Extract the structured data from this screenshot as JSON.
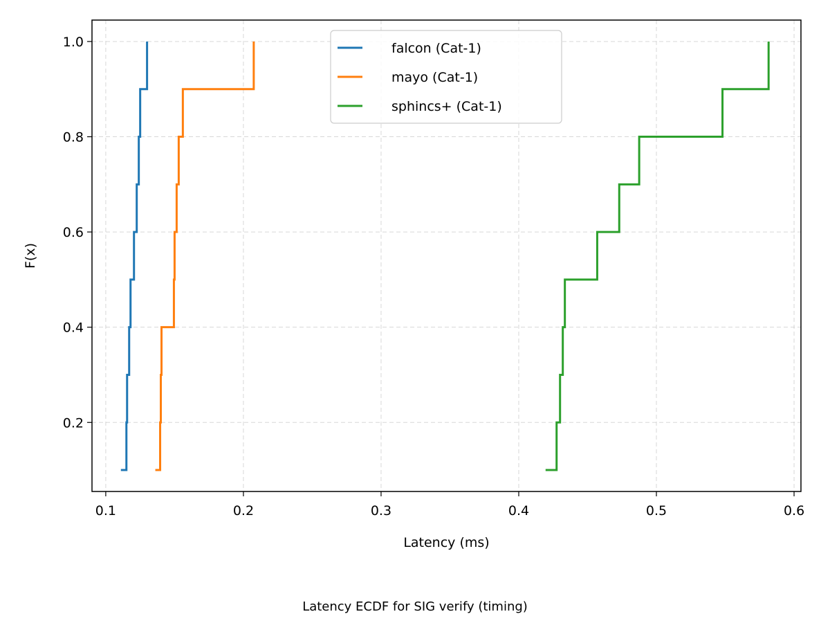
{
  "caption": "Latency ECDF for SIG verify (timing)",
  "chart_data": {
    "type": "line",
    "step": true,
    "title": "",
    "xlabel": "Latency (ms)",
    "ylabel": "F(x)",
    "xlim": [
      0.09,
      0.605
    ],
    "ylim": [
      0.055,
      1.045
    ],
    "xticks": [
      0.1,
      0.2,
      0.3,
      0.4,
      0.5,
      0.6
    ],
    "xtick_labels": [
      "0.1",
      "0.2",
      "0.3",
      "0.4",
      "0.5",
      "0.6"
    ],
    "yticks": [
      0.2,
      0.4,
      0.6,
      0.8,
      1.0
    ],
    "ytick_labels": [
      "0.2",
      "0.4",
      "0.6",
      "0.8",
      "1.0"
    ],
    "grid": true,
    "legend_position": "top-center",
    "series": [
      {
        "name": "falcon (Cat-1)",
        "color": "#1f77b4",
        "x": [
          0.1125,
          0.115,
          0.1155,
          0.117,
          0.118,
          0.1205,
          0.1225,
          0.124,
          0.125,
          0.13
        ],
        "y": [
          0.1,
          0.2,
          0.3,
          0.4,
          0.5,
          0.6,
          0.7,
          0.8,
          0.9,
          1.0
        ]
      },
      {
        "name": "mayo (Cat-1)",
        "color": "#ff7f0e",
        "x": [
          0.1375,
          0.1395,
          0.14,
          0.1405,
          0.1495,
          0.15,
          0.1515,
          0.153,
          0.156,
          0.2075
        ],
        "y": [
          0.1,
          0.2,
          0.3,
          0.4,
          0.5,
          0.6,
          0.7,
          0.8,
          0.9,
          1.0
        ]
      },
      {
        "name": "sphincs+ (Cat-1)",
        "color": "#2ca02c",
        "x": [
          0.421,
          0.4275,
          0.43,
          0.432,
          0.4335,
          0.457,
          0.473,
          0.4875,
          0.548,
          0.5815
        ],
        "y": [
          0.1,
          0.2,
          0.3,
          0.4,
          0.5,
          0.6,
          0.7,
          0.8,
          0.9,
          1.0
        ]
      }
    ]
  }
}
